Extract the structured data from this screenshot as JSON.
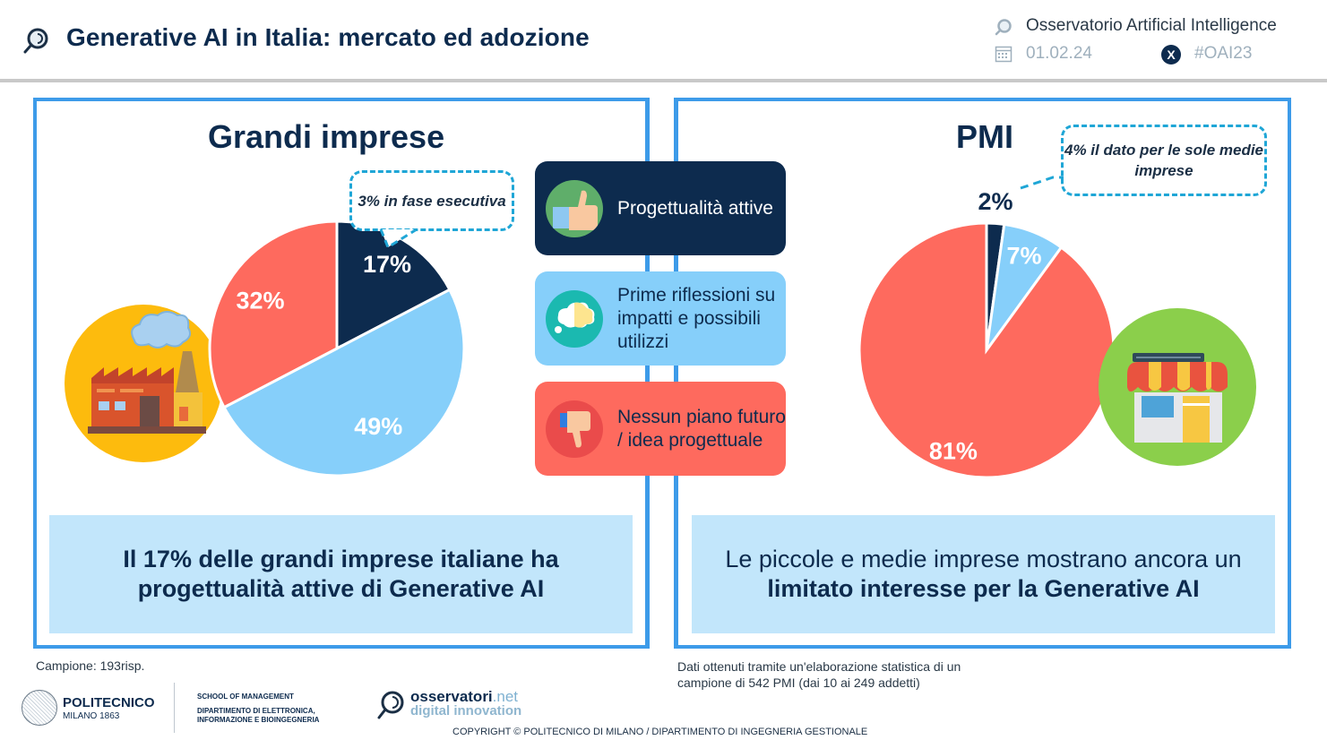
{
  "header": {
    "title": "Generative AI in Italia: mercato ed adozione",
    "observatory": "Osservatorio Artificial Intelligence",
    "date": "01.02.24",
    "hashtag": "#OAI23",
    "x_icon_glyph": "X"
  },
  "legend": [
    {
      "label": "Progettualità attive",
      "icon": "thumbs-up-icon",
      "color": "#0d2b4e"
    },
    {
      "label": "Prime riflessioni su impatti e possibili utilizzi",
      "icon": "thought-cloud-icon",
      "color": "#86cffa"
    },
    {
      "label": "Nessun piano futuro / idea progettuale",
      "icon": "thumbs-down-icon",
      "color": "#fe6a5e"
    }
  ],
  "left_panel": {
    "title": "Grandi imprese",
    "callout": "3% in fase esecutiva",
    "summary": "Il 17% delle grandi imprese italiane ha progettualità attive di Generative AI",
    "icon": "factory-icon"
  },
  "right_panel": {
    "title": "PMI",
    "callout": "4% il dato per le sole medie imprese",
    "summary_plain_1": "Le piccole e medie imprese mostrano ancora un ",
    "summary_bold": "limitato interesse per la Generative AI",
    "icon": "shop-icon"
  },
  "chart_data": [
    {
      "type": "pie",
      "title": "Grandi imprese",
      "categories": [
        "Progettualità attive",
        "Prime riflessioni su impatti e possibili utilizzi",
        "Nessun piano futuro / idea progettuale"
      ],
      "values": [
        17,
        49,
        32
      ],
      "labels": [
        "17%",
        "49%",
        "32%"
      ],
      "colors": [
        "#0d2b4e",
        "#86cffa",
        "#fe6a5e"
      ],
      "start": "12 o'clock, clockwise",
      "annotation": "3% in fase esecutiva"
    },
    {
      "type": "pie",
      "title": "PMI",
      "categories": [
        "Progettualità attive",
        "Prime riflessioni su impatti e possibili utilizzi",
        "Nessun piano futuro / idea progettuale"
      ],
      "values": [
        2,
        7,
        81
      ],
      "labels": [
        "2%",
        "7%",
        "81%"
      ],
      "colors": [
        "#0d2b4e",
        "#86cffa",
        "#fe6a5e"
      ],
      "start": "12 o'clock, clockwise",
      "annotation": "4% il dato per le sole medie imprese"
    }
  ],
  "footer": {
    "sample_left": "Campione: 193risp.",
    "sample_right": "Dati ottenuti tramite un'elaborazione statistica di un campione di 542 PMI (dai 10 ai 249 addetti)",
    "polimi_name": "POLITECNICO",
    "polimi_sub": "MILANO 1863",
    "school_line1": "SCHOOL OF MANAGEMENT",
    "school_line2": "DIPARTIMENTO DI ELETTRONICA,",
    "school_line3": "INFORMAZIONE E BIOINGEGNERIA",
    "osserv_name": "osservatori",
    "osserv_tld": ".net",
    "osserv_sub": "digital innovation",
    "copyright": "COPYRIGHT © POLITECNICO DI MILANO / DIPARTIMENTO DI INGEGNERIA GESTIONALE"
  }
}
